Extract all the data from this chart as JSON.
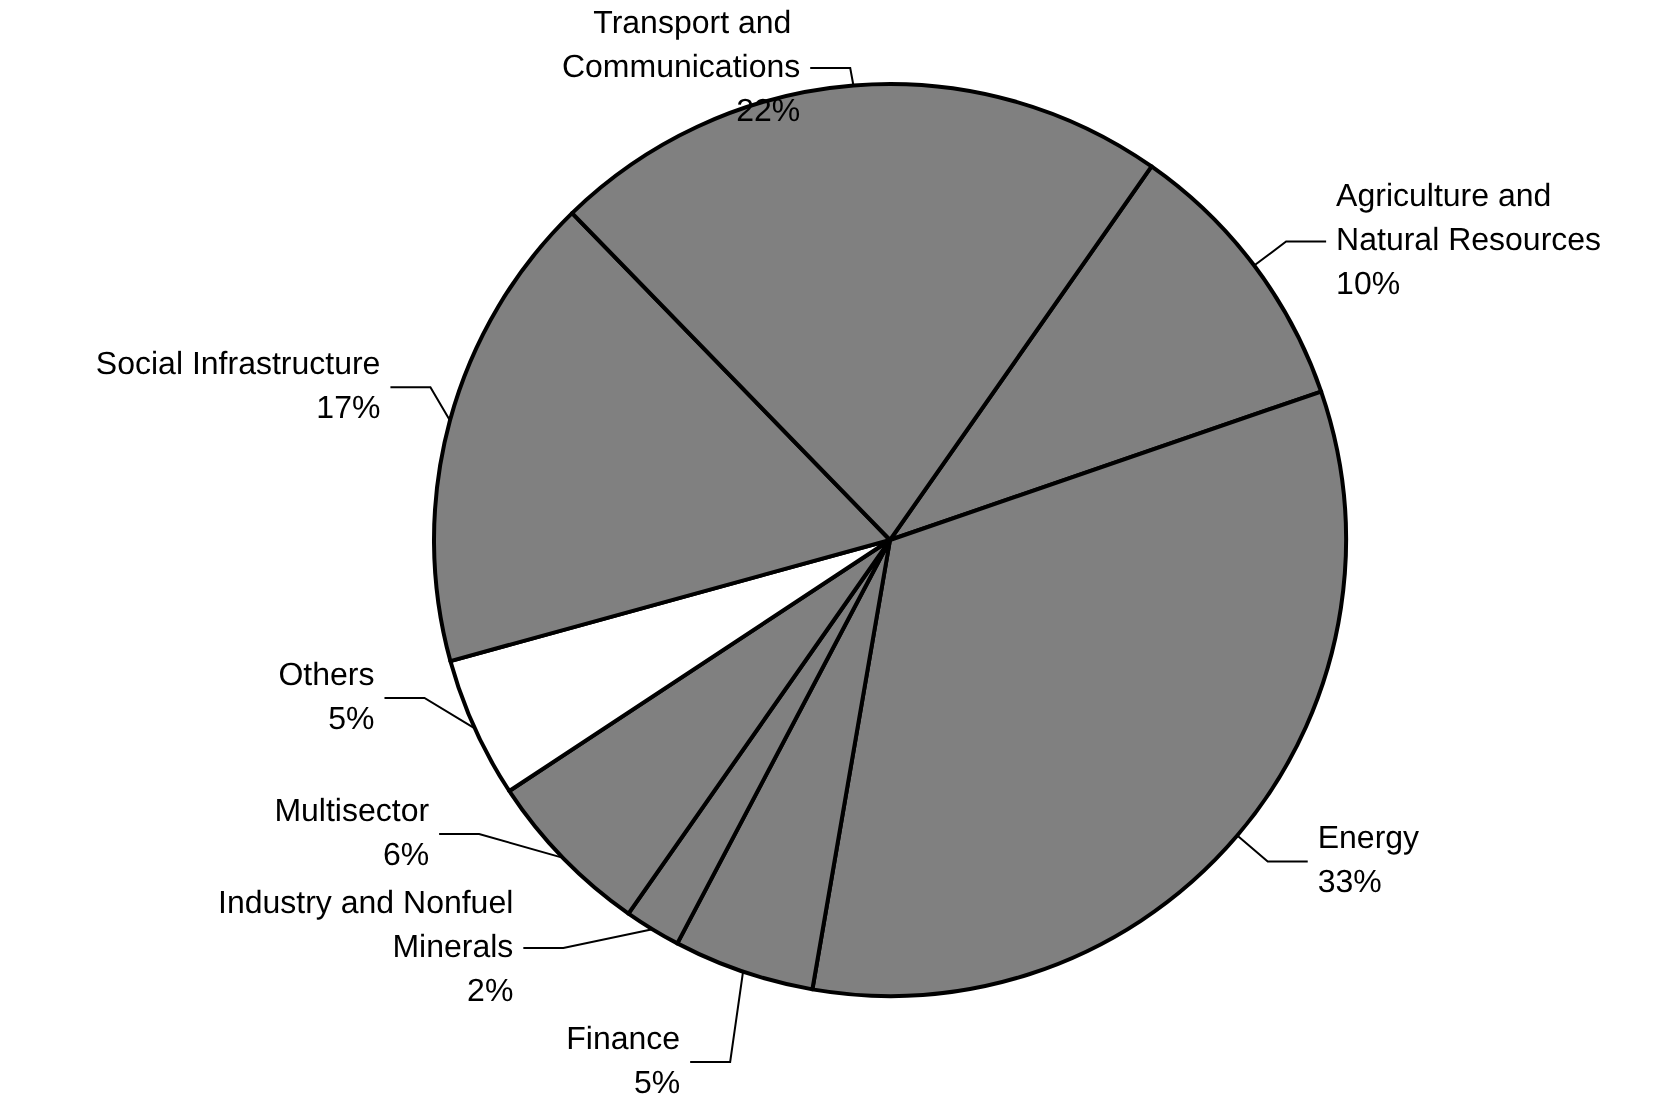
{
  "chart_data": {
    "type": "pie",
    "categories": [
      "Agriculture and Natural Resources",
      "Energy",
      "Finance",
      "Industry and Nonfuel Minerals",
      "Multisector",
      "Others",
      "Social Infrastructure",
      "Transport and Communications"
    ],
    "values": [
      10,
      33,
      5,
      2,
      6,
      5,
      17,
      22
    ],
    "value_labels": [
      "10%",
      "33%",
      "5%",
      "2%",
      "6%",
      "5%",
      "17%",
      "22%"
    ],
    "colors": [
      "#808080",
      "#808080",
      "#808080",
      "#808080",
      "#808080",
      "#ffffff",
      "#808080",
      "#808080"
    ]
  }
}
